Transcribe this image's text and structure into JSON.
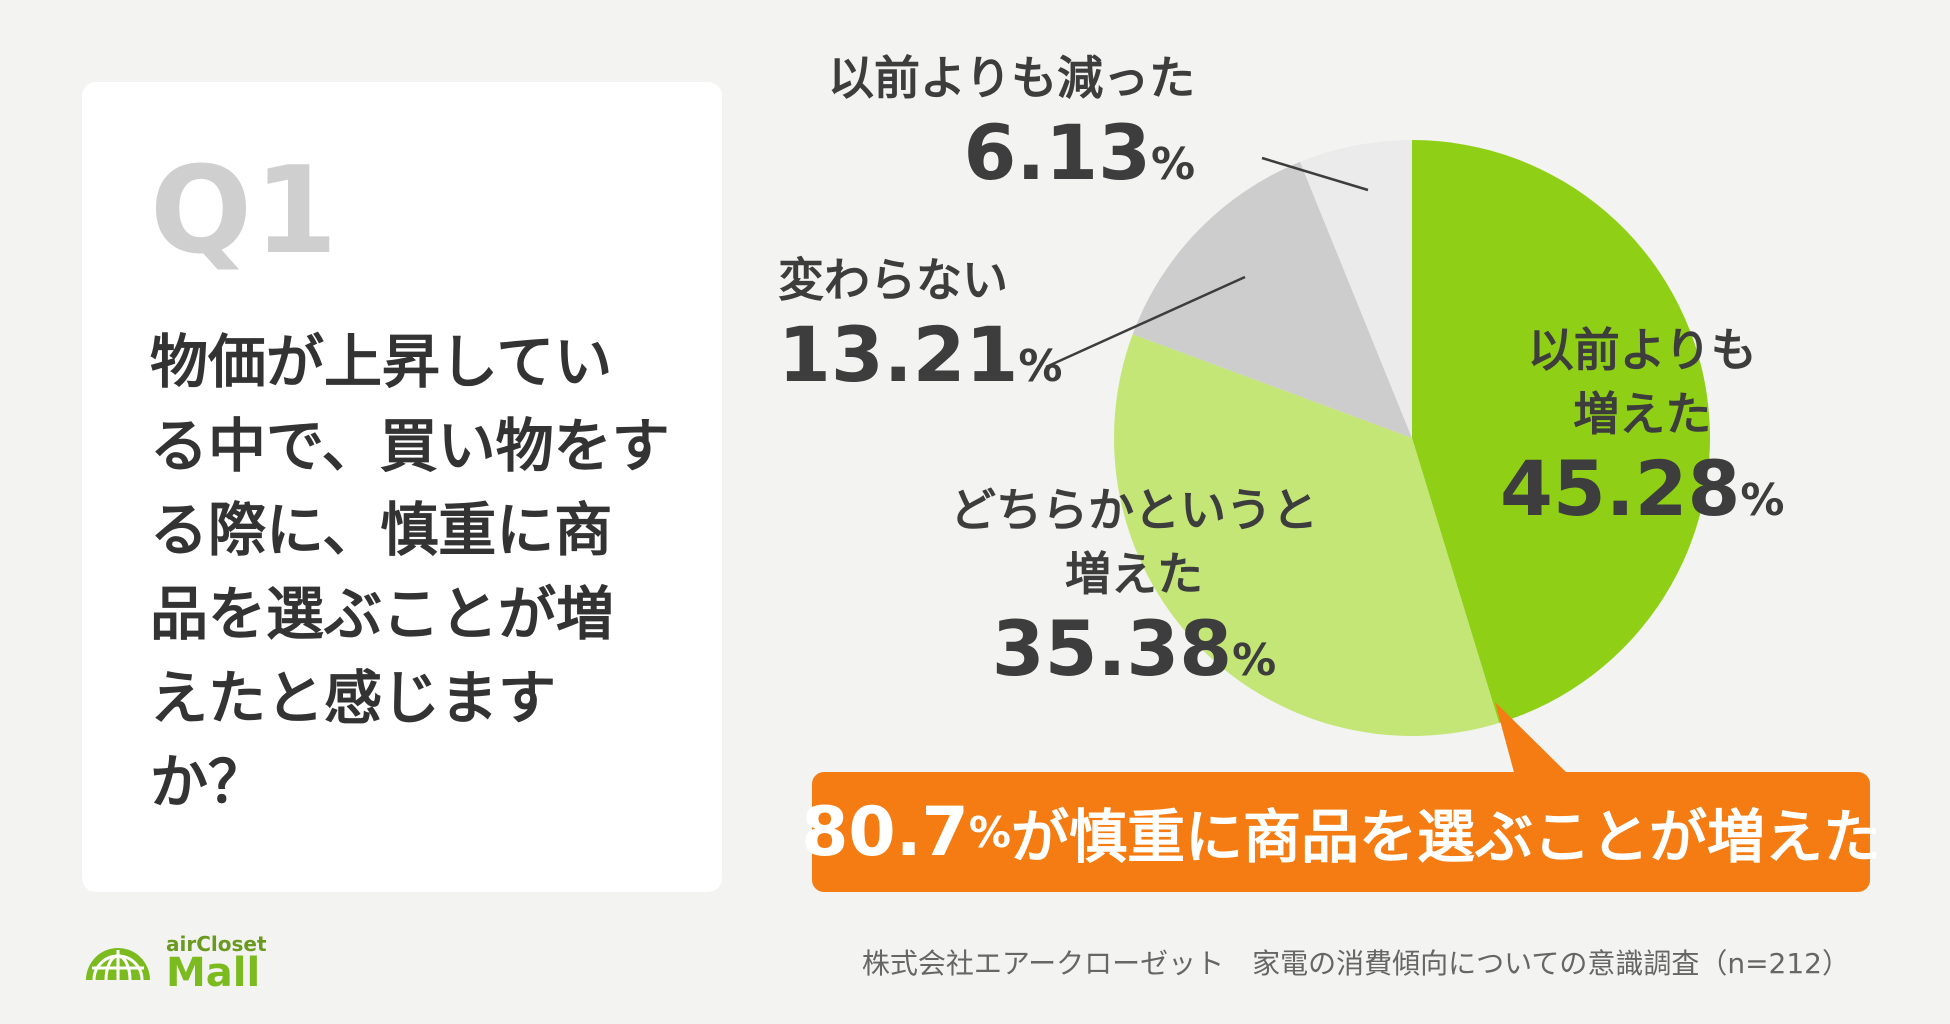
{
  "question": {
    "number": "Q1",
    "text": "物価が上昇している中で、買い物をする際に、慎重に商品を選ぶことが増えたと感じますか？"
  },
  "chart_data": {
    "type": "pie",
    "title": "",
    "unit": "%",
    "slices": [
      {
        "label": "以前よりも増えた",
        "value": 45.28,
        "color": "#8fd016"
      },
      {
        "label": "どちらかというと増えた",
        "value": 35.38,
        "color": "#c3e677"
      },
      {
        "label": "変わらない",
        "value": 13.21,
        "color": "#cdcdcd"
      },
      {
        "label": "以前よりも減った",
        "value": 6.13,
        "color": "#ebebeb"
      }
    ],
    "display_labels": [
      {
        "name_lines": [
          "以前よりも",
          "増えた"
        ],
        "value": "45.28",
        "pct": "%"
      },
      {
        "name_lines": [
          "どちらかというと",
          "増えた"
        ],
        "value": "35.38",
        "pct": "%"
      },
      {
        "name_lines": [
          "変わらない"
        ],
        "value": "13.21",
        "pct": "%"
      },
      {
        "name_lines": [
          "以前よりも減った"
        ],
        "value": "6.13",
        "pct": "%"
      }
    ]
  },
  "callout": {
    "number": "80.7",
    "pct": "%",
    "text": "が慎重に商品を選ぶことが増えた",
    "color": "#f47c12"
  },
  "logo": {
    "top": "airCloset",
    "bottom": "Mall",
    "color": "#7cbb1f"
  },
  "source": "株式会社エアークローゼット　家電の消費傾向についての意識調査（n=212）"
}
